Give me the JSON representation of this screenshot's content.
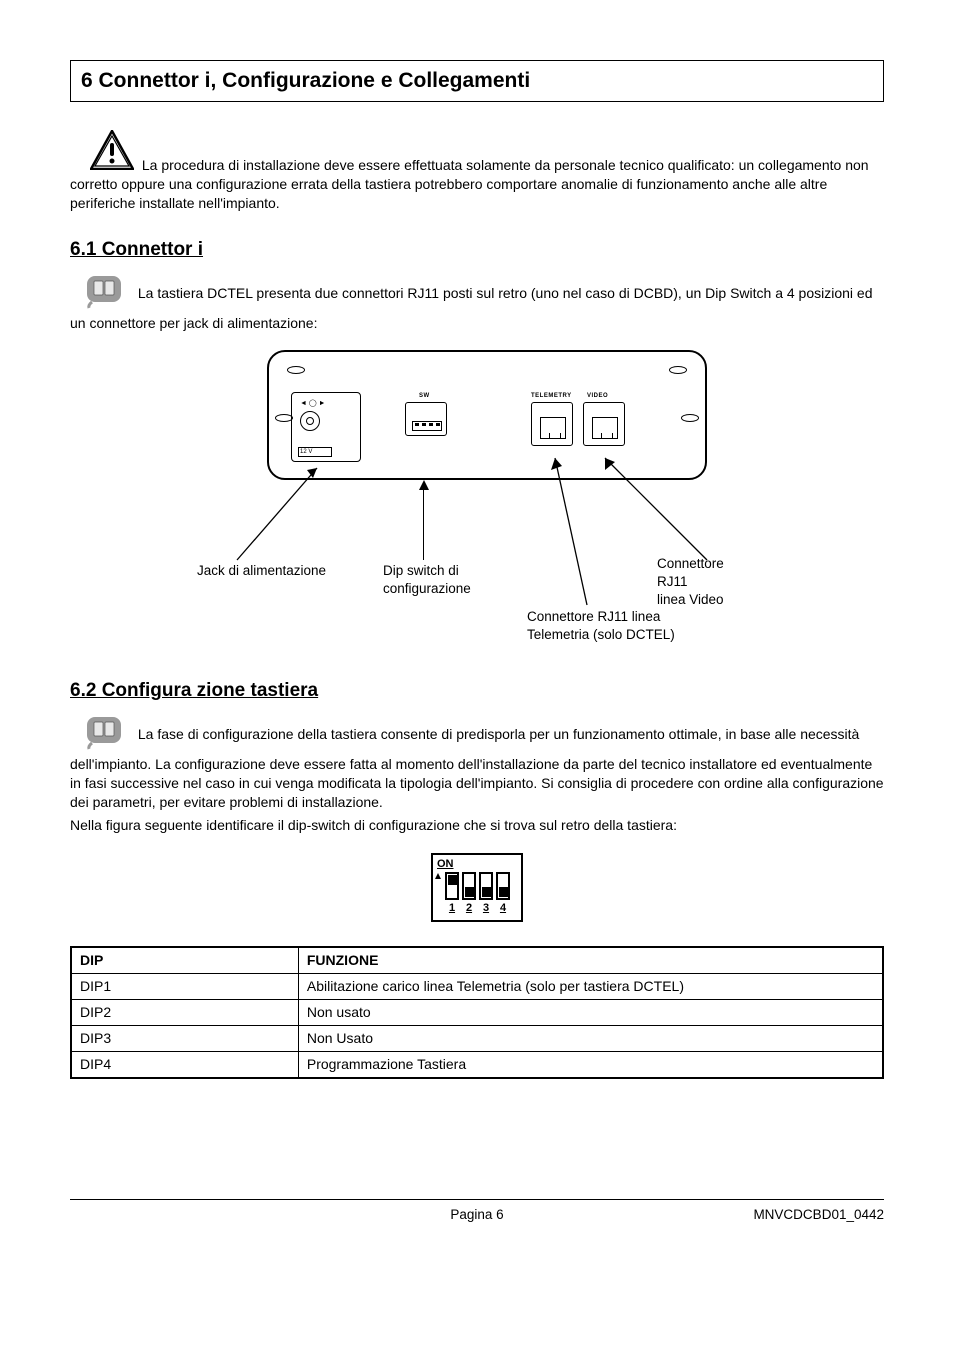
{
  "title": "6 Connettor i,  Configurazione e Collegamenti",
  "warning_para": "La procedura di installazione deve essere effettuata solamente da personale tecnico qualificato: un collegamento non corretto oppure una configurazione errata della tastiera potrebbero comportare anomalie di funzionamento anche alle altre periferiche installate nell'impianto.",
  "section_6_1": {
    "heading": "6.1 Connettor i",
    "para": "La tastiera DCTEL presenta due connettori RJ11 posti sul retro (uno nel caso di DCBD), un Dip Switch a 4 posizioni ed un connettore per jack di alimentazione:"
  },
  "diagram": {
    "jack_label": "Jack di alimentazione",
    "dip_label": "Dip switch di\nconfigurazione",
    "rj_telemetry_label": "Connettore RJ11 linea\nTelemetria (solo DCTEL)",
    "rj_video_label": "Connettore RJ11\nlinea Video",
    "sw_text": "SW",
    "tel_text": "TELEMETRY",
    "video_text": "VIDEO",
    "pwr_text": "12 V"
  },
  "section_6_2": {
    "heading": "6.2 Configura zione tastiera",
    "para1": "La fase di configurazione della tastiera consente di predisporla per un funzionamento ottimale, in base alle necessità dell'impianto. La configurazione deve essere fatta al momento dell'installazione da parte del tecnico installatore ed eventualmente in fasi successive nel caso in cui venga modificata la tipologia dell'impianto. Si consiglia di procedere con ordine alla configurazione dei parametri, per evitare problemi di installazione.",
    "para2": "Nella figura seguente identificare il dip-switch di configurazione che si trova sul retro della tastiera:",
    "on_label": "ON",
    "switches": [
      {
        "num": "1",
        "on": true
      },
      {
        "num": "2",
        "on": false
      },
      {
        "num": "3",
        "on": false
      },
      {
        "num": "4",
        "on": false
      }
    ]
  },
  "dip_table": {
    "headers": {
      "dip": "DIP",
      "func": "FUNZIONE"
    },
    "rows": [
      {
        "dip": "DIP1",
        "func": "Abilitazione carico linea Telemetria (solo per tastiera DCTEL)"
      },
      {
        "dip": "DIP2",
        "func": "Non usato"
      },
      {
        "dip": "DIP3",
        "func": "Non Usato"
      },
      {
        "dip": "DIP4",
        "func": "Programmazione Tastiera"
      }
    ]
  },
  "footer": {
    "page": "Pagina 6",
    "doc": "MNVCDCBD01_0442"
  },
  "colors": {
    "info_icon_bg": "#9a9a9a",
    "info_icon_page": "#e8e8e8"
  }
}
